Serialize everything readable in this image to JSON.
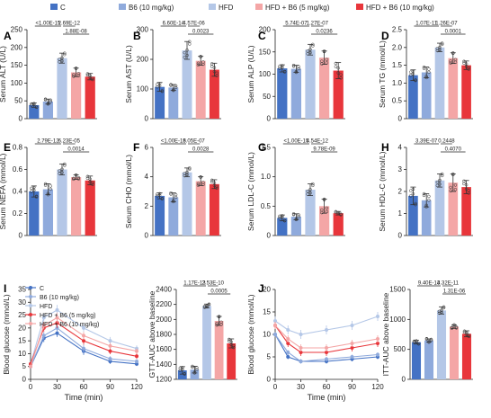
{
  "legend": {
    "items": [
      {
        "label": "C",
        "color": "#4472c4"
      },
      {
        "label": "B6 (10 mg/kg)",
        "color": "#8faadc"
      },
      {
        "label": "HFD",
        "color": "#b4c7e7"
      },
      {
        "label": "HFD + B6 (5 mg/kg)",
        "color": "#f4a6a6"
      },
      {
        "label": "HFD + B6 (10 mg/kg)",
        "color": "#e8363b"
      }
    ]
  },
  "colors": {
    "c": "#4472c4",
    "b6": "#8faadc",
    "hfd": "#b4c7e7",
    "hfd_b6_5": "#f4a6a6",
    "hfd_b6_10": "#e8363b"
  },
  "line_legend": {
    "items": [
      {
        "label": "C",
        "color": "#4472c4"
      },
      {
        "label": "B6 (10 mg/kg)",
        "color": "#8faadc"
      },
      {
        "label": "HFD",
        "color": "#b4c7e7"
      },
      {
        "label": "HFD + B6 (5 mg/kg)",
        "color": "#e8363b"
      },
      {
        "label": "HFD + B6 (10 mg/kg)",
        "color": "#f4a6a6"
      }
    ]
  },
  "chart_data": [
    {
      "type": "bar",
      "letter": "A",
      "ylabel": "Serum ALT (U/L)",
      "ylim": [
        0,
        250
      ],
      "ticks": [
        0,
        50,
        100,
        150,
        200,
        250
      ],
      "values": [
        38,
        48,
        170,
        130,
        118
      ],
      "errors": [
        6,
        7,
        14,
        12,
        9
      ],
      "sig": [
        {
          "text": "<1.00E-15",
          "from": 0,
          "to": 2,
          "level": 0
        },
        {
          "text": "2.69E-12",
          "from": 2,
          "to": 3,
          "level": 0
        },
        {
          "text": "1.88E-08",
          "from": 2,
          "to": 4,
          "level": 1
        }
      ]
    },
    {
      "type": "bar",
      "letter": "B",
      "ylabel": "Serum AST (U/L)",
      "ylim": [
        0,
        300
      ],
      "ticks": [
        0,
        100,
        200,
        300
      ],
      "values": [
        107,
        105,
        230,
        195,
        165
      ],
      "errors": [
        15,
        10,
        30,
        15,
        22
      ],
      "sig": [
        {
          "text": "6.60E-14",
          "from": 0,
          "to": 2,
          "level": 0
        },
        {
          "text": "4.57E-06",
          "from": 2,
          "to": 3,
          "level": 0
        },
        {
          "text": "0.0023",
          "from": 2,
          "to": 4,
          "level": 1
        }
      ]
    },
    {
      "type": "bar",
      "letter": "C",
      "ylabel": "Serum ALP (U/L)",
      "ylim": [
        0,
        200
      ],
      "ticks": [
        0,
        50,
        100,
        150,
        200
      ],
      "values": [
        113,
        112,
        155,
        137,
        108
      ],
      "errors": [
        8,
        8,
        12,
        15,
        18
      ],
      "sig": [
        {
          "text": "5.74E-07",
          "from": 0,
          "to": 2,
          "level": 0
        },
        {
          "text": "1.27E-07",
          "from": 2,
          "to": 3,
          "level": 0
        },
        {
          "text": "0.0236",
          "from": 2,
          "to": 4,
          "level": 1
        }
      ]
    },
    {
      "type": "bar",
      "letter": "D",
      "ylabel": "Serum TG (mmol/L)",
      "ylim": [
        0,
        2.5
      ],
      "ticks": [
        0,
        0.5,
        1.0,
        1.5,
        2.0,
        2.5
      ],
      "tick_labels": [
        "0",
        "0.5",
        "1.0",
        "1.5",
        "2.0",
        "2.5"
      ],
      "values": [
        1.22,
        1.3,
        2.0,
        1.7,
        1.5
      ],
      "errors": [
        0.15,
        0.15,
        0.12,
        0.15,
        0.12
      ],
      "sig": [
        {
          "text": "1.07E-11",
          "from": 0,
          "to": 2,
          "level": 0
        },
        {
          "text": "1.26E-07",
          "from": 2,
          "to": 3,
          "level": 0
        },
        {
          "text": "0.0001",
          "from": 2,
          "to": 4,
          "level": 1
        }
      ]
    },
    {
      "type": "bar",
      "letter": "E",
      "ylabel": "Serum NEFA (mmol/L)",
      "ylim": [
        0,
        0.8
      ],
      "ticks": [
        0,
        0.2,
        0.4,
        0.6,
        0.8
      ],
      "tick_labels": [
        "0",
        "0.2",
        "0.4",
        "0.6",
        "0.8"
      ],
      "values": [
        0.4,
        0.42,
        0.6,
        0.53,
        0.5
      ],
      "errors": [
        0.05,
        0.05,
        0.05,
        0.02,
        0.04
      ],
      "sig": [
        {
          "text": "2.79E-12",
          "from": 0,
          "to": 2,
          "level": 0
        },
        {
          "text": "6.23E-05",
          "from": 2,
          "to": 3,
          "level": 0
        },
        {
          "text": "0.0014",
          "from": 2,
          "to": 4,
          "level": 1
        }
      ]
    },
    {
      "type": "bar",
      "letter": "F",
      "ylabel": "Serum CHO (mmol/L)",
      "ylim": [
        0,
        6
      ],
      "ticks": [
        0,
        2,
        4,
        6
      ],
      "values": [
        2.7,
        2.6,
        4.3,
        3.7,
        3.5
      ],
      "errors": [
        0.2,
        0.3,
        0.3,
        0.3,
        0.3
      ],
      "sig": [
        {
          "text": "<1.00E-15",
          "from": 0,
          "to": 2,
          "level": 0
        },
        {
          "text": "8.05E-07",
          "from": 2,
          "to": 3,
          "level": 0
        },
        {
          "text": "0.0028",
          "from": 2,
          "to": 4,
          "level": 1
        }
      ]
    },
    {
      "type": "bar",
      "letter": "G",
      "ylabel": "Serum LDL-C (mmol/L)",
      "ylim": [
        0,
        1.5
      ],
      "ticks": [
        0,
        0.5,
        1.0,
        1.5
      ],
      "tick_labels": [
        "0",
        "0.5",
        "1.0",
        "1.5"
      ],
      "values": [
        0.3,
        0.32,
        0.78,
        0.5,
        0.38
      ],
      "errors": [
        0.05,
        0.05,
        0.1,
        0.12,
        0.03
      ],
      "sig": [
        {
          "text": "<1.00E-15",
          "from": 0,
          "to": 2,
          "level": 0
        },
        {
          "text": "4.54E-12",
          "from": 2,
          "to": 3,
          "level": 0
        },
        {
          "text": "9.78E-09",
          "from": 2,
          "to": 4,
          "level": 1
        }
      ]
    },
    {
      "type": "bar",
      "letter": "H",
      "ylabel": "Serum HDL-C (mmol/L)",
      "ylim": [
        0,
        4
      ],
      "ticks": [
        0,
        1,
        2,
        3,
        4
      ],
      "values": [
        1.8,
        1.6,
        2.5,
        2.4,
        2.2
      ],
      "errors": [
        0.4,
        0.3,
        0.3,
        0.4,
        0.3
      ],
      "sig": [
        {
          "text": "3.39E-07",
          "from": 0,
          "to": 2,
          "level": 0
        },
        {
          "text": "0.2448",
          "from": 2,
          "to": 3,
          "level": 0
        },
        {
          "text": "0.4070",
          "from": 2,
          "to": 4,
          "level": 1
        }
      ]
    },
    {
      "type": "line",
      "letter": "I",
      "ylabel": "Blood glucose (mmol/L)",
      "xlabel": "Time (min)",
      "x": [
        0,
        15,
        30,
        60,
        90,
        120
      ],
      "xticks": [
        0,
        30,
        60,
        90,
        120
      ],
      "ylim": [
        0,
        35
      ],
      "yticks": [
        0,
        5,
        10,
        15,
        20,
        25,
        30,
        35
      ],
      "series": [
        {
          "name": "C",
          "values": [
            5,
            16,
            18,
            11,
            7,
            6
          ],
          "errors": [
            0.5,
            1.5,
            1.5,
            1.5,
            1,
            0.8
          ]
        },
        {
          "name": "B6 (10 mg/kg)",
          "values": [
            5,
            17,
            20,
            12,
            8,
            7
          ],
          "errors": [
            0.5,
            1.5,
            1.5,
            1.5,
            1,
            0.8
          ]
        },
        {
          "name": "HFD",
          "values": [
            6,
            24,
            27,
            20,
            15,
            12
          ],
          "errors": [
            0.5,
            1.5,
            2,
            1.5,
            1.5,
            1.2
          ]
        },
        {
          "name": "HFD + B6 (5 mg/kg)",
          "values": [
            6,
            20,
            22,
            15,
            11,
            9
          ],
          "errors": [
            0.5,
            1.5,
            2,
            1.5,
            1.2,
            1
          ]
        },
        {
          "name": "HFD + B6 (10 mg/kg)",
          "values": [
            5,
            21,
            24,
            17,
            13,
            11
          ],
          "errors": [
            0.5,
            1.5,
            2,
            1.5,
            1.2,
            1
          ]
        }
      ]
    },
    {
      "type": "bar",
      "letter": "",
      "ylabel": "GTT-AUC above baseline",
      "ylim": [
        1200,
        2400
      ],
      "ticks": [
        1200,
        1400,
        1600,
        1800,
        2000,
        2200,
        2400
      ],
      "values": [
        1320,
        1330,
        2180,
        1980,
        1680
      ],
      "errors": [
        50,
        45,
        25,
        60,
        60
      ],
      "sig": [
        {
          "text": "1.17E-13",
          "from": 0,
          "to": 2,
          "level": 0
        },
        {
          "text": "2.53E-10",
          "from": 2,
          "to": 3,
          "level": 0
        },
        {
          "text": "0.0005",
          "from": 2,
          "to": 4,
          "level": 1
        }
      ]
    },
    {
      "type": "line",
      "letter": "J",
      "ylabel": "Blood glucose (mmol/L)",
      "xlabel": "Time (min)",
      "x": [
        0,
        15,
        30,
        60,
        90,
        120
      ],
      "xticks": [
        0,
        30,
        60,
        90,
        120
      ],
      "ylim": [
        0,
        20
      ],
      "yticks": [
        0,
        5,
        10,
        15,
        20
      ],
      "series": [
        {
          "name": "C",
          "values": [
            10,
            5,
            4,
            4,
            4.5,
            5
          ],
          "errors": [
            0.5,
            0.5,
            0.5,
            0.5,
            0.5,
            0.5
          ]
        },
        {
          "name": "B6 (10 mg/kg)",
          "values": [
            10,
            6,
            4,
            4.5,
            5,
            5.5
          ],
          "errors": [
            0.5,
            0.5,
            0.5,
            0.5,
            0.5,
            0.5
          ]
        },
        {
          "name": "HFD",
          "values": [
            13,
            11,
            10,
            11,
            12,
            14
          ],
          "errors": [
            1,
            1,
            1,
            1,
            1,
            1
          ]
        },
        {
          "name": "HFD + B6 (5 mg/kg)",
          "values": [
            12,
            8,
            6,
            6,
            7,
            8
          ],
          "errors": [
            0.8,
            0.8,
            0.8,
            0.8,
            0.8,
            0.8
          ]
        },
        {
          "name": "HFD + B6 (10 mg/kg)",
          "values": [
            12,
            9,
            7,
            7,
            8,
            9
          ],
          "errors": [
            0.8,
            0.8,
            0.8,
            0.8,
            0.8,
            0.8
          ]
        }
      ]
    },
    {
      "type": "bar",
      "letter": "",
      "ylabel": "ITT-AUC above baseline",
      "ylim": [
        0,
        1500
      ],
      "ticks": [
        0,
        500,
        1000,
        1500
      ],
      "values": [
        620,
        650,
        1150,
        880,
        760
      ],
      "errors": [
        30,
        25,
        60,
        30,
        50
      ],
      "sig": [
        {
          "text": "9.40E-14",
          "from": 0,
          "to": 2,
          "level": 0
        },
        {
          "text": "3.32E-11",
          "from": 2,
          "to": 3,
          "level": 0
        },
        {
          "text": "1.31E-06",
          "from": 2,
          "to": 4,
          "level": 1
        }
      ]
    }
  ]
}
